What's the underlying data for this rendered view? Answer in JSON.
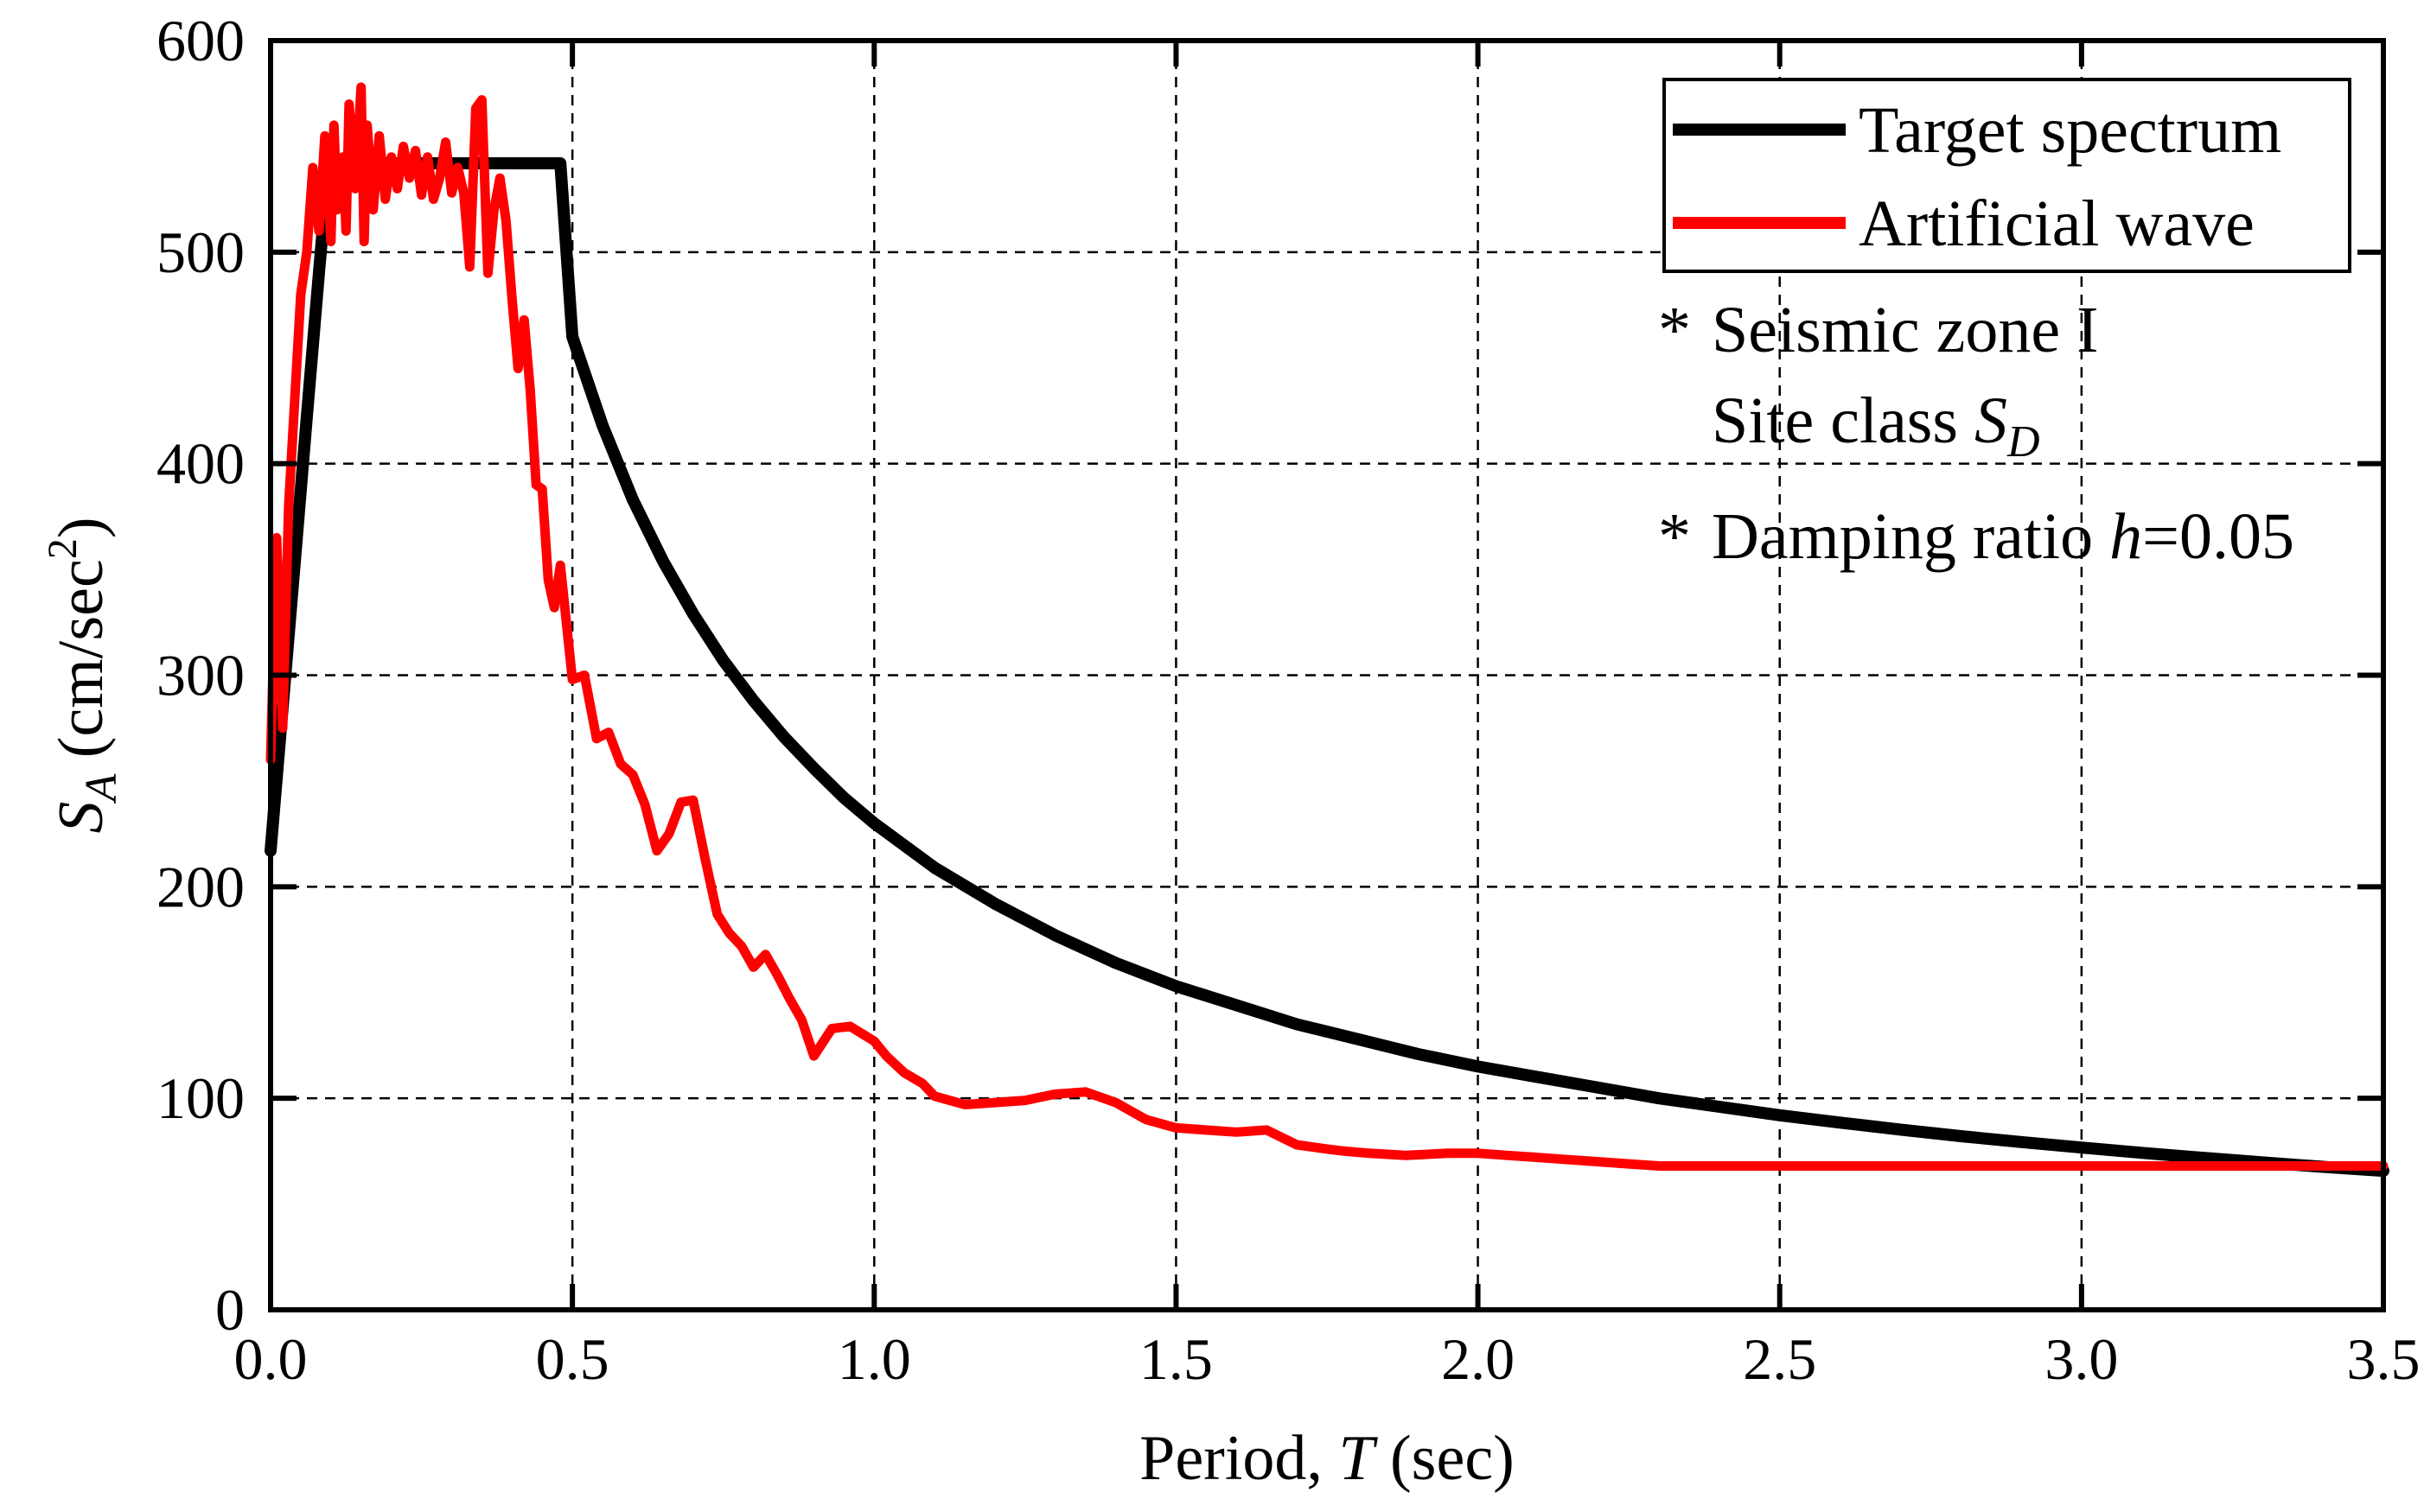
{
  "chart_data": {
    "type": "line",
    "title": "",
    "xlabel": {
      "prefix": "Period, ",
      "var": "T",
      "suffix": " (sec)"
    },
    "ylabel": {
      "var": "S",
      "sub": "A",
      "unit_pre": " (cm/sec",
      "unit_sup": "2",
      "unit_post": ")"
    },
    "xlim": [
      0,
      3.5
    ],
    "ylim": [
      0,
      600
    ],
    "xticks": [
      0,
      0.5,
      1.0,
      1.5,
      2.0,
      2.5,
      3.0,
      3.5
    ],
    "xtick_labels": [
      "0.0",
      "0.5",
      "1.0",
      "1.5",
      "2.0",
      "2.5",
      "3.0",
      "3.5"
    ],
    "yticks": [
      0,
      100,
      200,
      300,
      400,
      500,
      600
    ],
    "ytick_labels": [
      "0",
      "100",
      "200",
      "300",
      "400",
      "500",
      "600"
    ],
    "grid": true,
    "legend_position": "top-right",
    "series": [
      {
        "name": "Target spectrum",
        "color": "#000000",
        "x": [
          0.0,
          0.02,
          0.04,
          0.06,
          0.08,
          0.096,
          0.15,
          0.2,
          0.3,
          0.4,
          0.45,
          0.48,
          0.5,
          0.55,
          0.6,
          0.65,
          0.7,
          0.75,
          0.8,
          0.85,
          0.9,
          0.95,
          1.0,
          1.1,
          1.2,
          1.3,
          1.4,
          1.5,
          1.6,
          1.7,
          1.8,
          1.9,
          2.0,
          2.1,
          2.2,
          2.3,
          2.4,
          2.5,
          2.6,
          2.7,
          2.8,
          2.9,
          3.0,
          3.1,
          3.2,
          3.3,
          3.4,
          3.5
        ],
        "y": [
          217,
          285,
          353,
          422,
          490,
          542,
          542,
          542,
          542,
          542,
          542,
          542,
          460,
          418,
          383,
          354,
          329,
          307,
          288,
          271,
          256,
          242,
          230,
          209,
          192,
          177,
          164,
          153,
          144,
          135,
          128,
          121,
          115,
          110,
          105,
          100,
          96,
          92,
          88.5,
          85.2,
          82.1,
          79.3,
          76.7,
          74.2,
          71.9,
          69.7,
          67.6,
          65.7
        ]
      },
      {
        "name": "Artificial wave",
        "color": "#ff0000",
        "x": [
          0.0,
          0.01,
          0.02,
          0.025,
          0.03,
          0.04,
          0.05,
          0.06,
          0.07,
          0.08,
          0.09,
          0.1,
          0.105,
          0.11,
          0.12,
          0.125,
          0.13,
          0.14,
          0.15,
          0.155,
          0.16,
          0.17,
          0.18,
          0.19,
          0.2,
          0.21,
          0.22,
          0.23,
          0.24,
          0.25,
          0.26,
          0.27,
          0.28,
          0.29,
          0.3,
          0.31,
          0.32,
          0.33,
          0.34,
          0.35,
          0.36,
          0.37,
          0.38,
          0.39,
          0.4,
          0.41,
          0.42,
          0.43,
          0.44,
          0.45,
          0.46,
          0.47,
          0.48,
          0.5,
          0.52,
          0.54,
          0.56,
          0.58,
          0.6,
          0.62,
          0.64,
          0.66,
          0.68,
          0.7,
          0.72,
          0.74,
          0.76,
          0.78,
          0.8,
          0.82,
          0.84,
          0.86,
          0.88,
          0.9,
          0.93,
          0.96,
          1.0,
          1.02,
          1.05,
          1.08,
          1.1,
          1.15,
          1.2,
          1.25,
          1.3,
          1.35,
          1.4,
          1.45,
          1.5,
          1.55,
          1.6,
          1.65,
          1.7,
          1.75,
          1.78,
          1.82,
          1.88,
          1.95,
          2.0,
          2.05,
          2.1,
          2.15,
          2.2,
          2.25,
          2.3,
          2.35,
          2.4,
          2.45,
          2.5,
          2.55,
          2.6,
          2.65,
          2.7,
          2.75,
          2.8,
          2.85,
          2.9,
          2.95,
          3.0,
          3.05,
          3.1,
          3.15,
          3.2,
          3.25,
          3.3,
          3.35,
          3.4,
          3.45,
          3.5
        ],
        "y": [
          260,
          365,
          275,
          330,
          380,
          430,
          480,
          500,
          540,
          510,
          555,
          505,
          560,
          520,
          545,
          510,
          570,
          530,
          578,
          505,
          560,
          520,
          555,
          525,
          545,
          530,
          550,
          535,
          548,
          527,
          545,
          525,
          535,
          552,
          528,
          540,
          528,
          493,
          568,
          572,
          490,
          520,
          535,
          515,
          478,
          445,
          468,
          435,
          390,
          388,
          345,
          332,
          352,
          298,
          300,
          270,
          273,
          258,
          253,
          239,
          217,
          225,
          240,
          241,
          213,
          187,
          178,
          172,
          162,
          168,
          158,
          147,
          137,
          120,
          133,
          134,
          127,
          120,
          112,
          107,
          101,
          97,
          98,
          99,
          102,
          103,
          98,
          90,
          86,
          85,
          84,
          85,
          78,
          76,
          75,
          74,
          73,
          74,
          74,
          73,
          72,
          71,
          70,
          69,
          68,
          68,
          68,
          68,
          68,
          68,
          68,
          68,
          68,
          68,
          68,
          68,
          68,
          68,
          68,
          68,
          68,
          68,
          68,
          68,
          68,
          68,
          68,
          68,
          68
        ]
      }
    ],
    "annotations": {
      "line1": {
        "star": "*",
        "text": "Seismic zone I"
      },
      "line2": {
        "text": "Site class ",
        "var": "S",
        "sub": "D"
      },
      "line3": {
        "star": "*",
        "text": "Damping ratio ",
        "var": "h",
        "suffix": "=0.05"
      }
    }
  }
}
